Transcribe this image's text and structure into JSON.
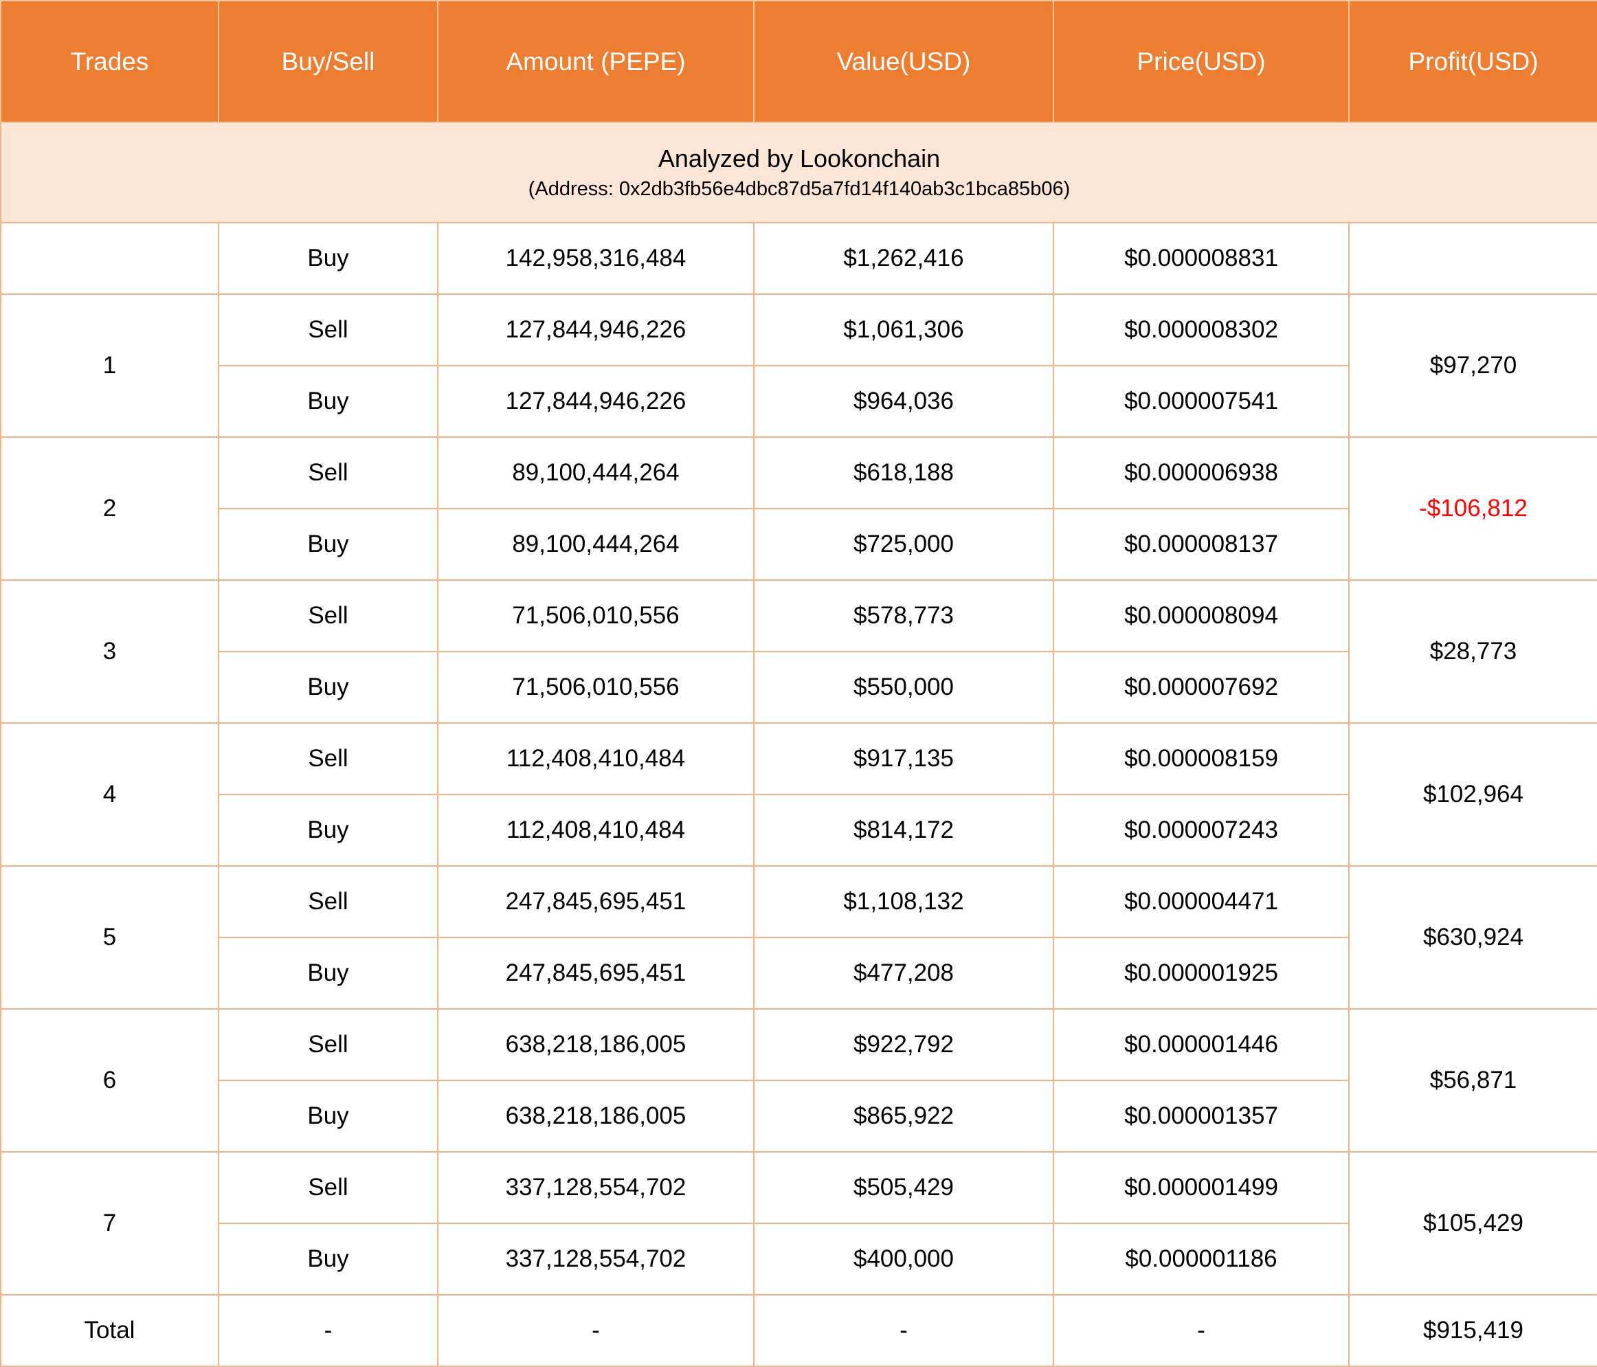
{
  "table": {
    "columns": [
      "Trades",
      "Buy/Sell",
      "Amount (PEPE)",
      "Value(USD)",
      "Price(USD)",
      "Profit(USD)"
    ],
    "banner": {
      "title": "Analyzed by Lookonchain",
      "address": "(Address: 0x2db3fb56e4dbc87d5a7fd14f140ab3c1bca85b06)"
    },
    "initial_row": {
      "trade": "",
      "side": "Buy",
      "amount": "142,958,316,484",
      "value": "$1,262,416",
      "price": "$0.000008831",
      "profit": ""
    },
    "trades": [
      {
        "trade": "1",
        "sell": {
          "side": "Sell",
          "amount": "127,844,946,226",
          "value": "$1,061,306",
          "price": "$0.000008302"
        },
        "buy": {
          "side": "Buy",
          "amount": "127,844,946,226",
          "value": "$964,036",
          "price": "$0.000007541"
        },
        "profit": "$97,270",
        "profit_negative": false
      },
      {
        "trade": "2",
        "sell": {
          "side": "Sell",
          "amount": "89,100,444,264",
          "value": "$618,188",
          "price": "$0.000006938"
        },
        "buy": {
          "side": "Buy",
          "amount": "89,100,444,264",
          "value": "$725,000",
          "price": "$0.000008137"
        },
        "profit": "-$106,812",
        "profit_negative": true
      },
      {
        "trade": "3",
        "sell": {
          "side": "Sell",
          "amount": "71,506,010,556",
          "value": "$578,773",
          "price": "$0.000008094"
        },
        "buy": {
          "side": "Buy",
          "amount": "71,506,010,556",
          "value": "$550,000",
          "price": "$0.000007692"
        },
        "profit": "$28,773",
        "profit_negative": false
      },
      {
        "trade": "4",
        "sell": {
          "side": "Sell",
          "amount": "112,408,410,484",
          "value": "$917,135",
          "price": "$0.000008159"
        },
        "buy": {
          "side": "Buy",
          "amount": "112,408,410,484",
          "value": "$814,172",
          "price": "$0.000007243"
        },
        "profit": "$102,964",
        "profit_negative": false
      },
      {
        "trade": "5",
        "sell": {
          "side": "Sell",
          "amount": "247,845,695,451",
          "value": "$1,108,132",
          "price": "$0.000004471"
        },
        "buy": {
          "side": "Buy",
          "amount": "247,845,695,451",
          "value": "$477,208",
          "price": "$0.000001925"
        },
        "profit": "$630,924",
        "profit_negative": false
      },
      {
        "trade": "6",
        "sell": {
          "side": "Sell",
          "amount": "638,218,186,005",
          "value": "$922,792",
          "price": "$0.000001446"
        },
        "buy": {
          "side": "Buy",
          "amount": "638,218,186,005",
          "value": "$865,922",
          "price": "$0.000001357"
        },
        "profit": "$56,871",
        "profit_negative": false
      },
      {
        "trade": "7",
        "sell": {
          "side": "Sell",
          "amount": "337,128,554,702",
          "value": "$505,429",
          "price": "$0.000001499"
        },
        "buy": {
          "side": "Buy",
          "amount": "337,128,554,702",
          "value": "$400,000",
          "price": "$0.000001186"
        },
        "profit": "$105,429",
        "profit_negative": false
      }
    ],
    "total_row": {
      "label": "Total",
      "side": "-",
      "amount": "-",
      "value": "-",
      "price": "-",
      "profit": "$915,419"
    }
  },
  "chart_data": {
    "type": "table",
    "title": "Analyzed by Lookonchain",
    "subtitle": "(Address: 0x2db3fb56e4dbc87d5a7fd14f140ab3c1bca85b06)",
    "columns": [
      "Trades",
      "Buy/Sell",
      "Amount (PEPE)",
      "Value(USD)",
      "Price(USD)",
      "Profit(USD)"
    ],
    "rows": [
      [
        "",
        "Buy",
        "142,958,316,484",
        "$1,262,416",
        "$0.000008831",
        ""
      ],
      [
        "1",
        "Sell",
        "127,844,946,226",
        "$1,061,306",
        "$0.000008302",
        "$97,270"
      ],
      [
        "1",
        "Buy",
        "127,844,946,226",
        "$964,036",
        "$0.000007541",
        "$97,270"
      ],
      [
        "2",
        "Sell",
        "89,100,444,264",
        "$618,188",
        "$0.000006938",
        "-$106,812"
      ],
      [
        "2",
        "Buy",
        "89,100,444,264",
        "$725,000",
        "$0.000008137",
        "-$106,812"
      ],
      [
        "3",
        "Sell",
        "71,506,010,556",
        "$578,773",
        "$0.000008094",
        "$28,773"
      ],
      [
        "3",
        "Buy",
        "71,506,010,556",
        "$550,000",
        "$0.000007692",
        "$28,773"
      ],
      [
        "4",
        "Sell",
        "112,408,410,484",
        "$917,135",
        "$0.000008159",
        "$102,964"
      ],
      [
        "4",
        "Buy",
        "112,408,410,484",
        "$814,172",
        "$0.000007243",
        "$102,964"
      ],
      [
        "5",
        "Sell",
        "247,845,695,451",
        "$1,108,132",
        "$0.000004471",
        "$630,924"
      ],
      [
        "5",
        "Buy",
        "247,845,695,451",
        "$477,208",
        "$0.000001925",
        "$630,924"
      ],
      [
        "6",
        "Sell",
        "638,218,186,005",
        "$922,792",
        "$0.000001446",
        "$56,871"
      ],
      [
        "6",
        "Buy",
        "638,218,186,005",
        "$865,922",
        "$0.000001357",
        "$56,871"
      ],
      [
        "7",
        "Sell",
        "337,128,554,702",
        "$505,429",
        "$0.000001499",
        "$105,429"
      ],
      [
        "7",
        "Buy",
        "337,128,554,702",
        "$400,000",
        "$0.000001186",
        "$105,429"
      ],
      [
        "Total",
        "-",
        "-",
        "-",
        "-",
        "$915,419"
      ]
    ]
  },
  "colors": {
    "header_bg": "#ED7D31",
    "banner_bg": "#FBE5D6",
    "border": "#F4B183",
    "header_border": "#F7C99F",
    "negative": "#FF0000"
  }
}
